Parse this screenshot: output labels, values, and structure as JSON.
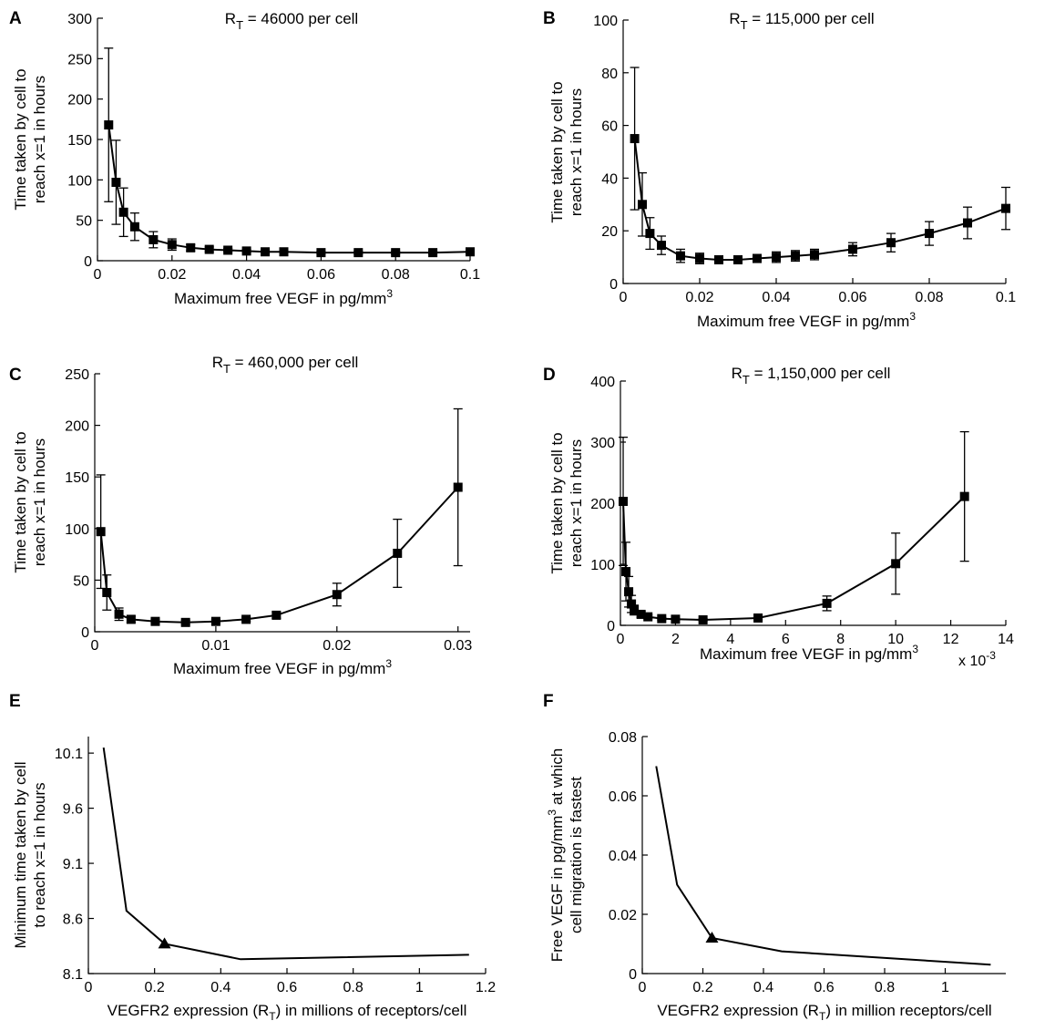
{
  "chart_data": [
    {
      "id": "A",
      "type": "line",
      "panel_label": "A",
      "title_main": "R",
      "title_sub": "T",
      "title_rest": " = 46000 per cell",
      "ylabel": [
        "Time taken by cell to",
        "reach x=1 in hours"
      ],
      "xlabel_main": "Maximum free VEGF in pg/mm",
      "xlabel_sup": "3",
      "xlim": [
        0,
        0.1
      ],
      "ylim": [
        0,
        300
      ],
      "xticks": [
        0,
        0.02,
        0.04,
        0.06,
        0.08,
        0.1
      ],
      "xtick_labels": [
        "0",
        "0.02",
        "0.04",
        "0.06",
        "0.08",
        "0.1"
      ],
      "yticks": [
        0,
        50,
        100,
        150,
        200,
        250,
        300
      ],
      "ytick_labels": [
        "0",
        "50",
        "100",
        "150",
        "200",
        "250",
        "300"
      ],
      "marker": "square",
      "x": [
        0.003,
        0.005,
        0.007,
        0.01,
        0.015,
        0.02,
        0.025,
        0.03,
        0.035,
        0.04,
        0.045,
        0.05,
        0.06,
        0.07,
        0.08,
        0.09,
        0.1
      ],
      "y": [
        168,
        97,
        60,
        42,
        26,
        20,
        16,
        14,
        13,
        12,
        11,
        11,
        10,
        10,
        10,
        10,
        11
      ],
      "err": [
        95,
        52,
        30,
        17,
        10,
        7,
        4,
        3,
        2,
        2,
        2,
        2,
        2,
        2,
        2,
        2,
        2
      ]
    },
    {
      "id": "B",
      "type": "line",
      "panel_label": "B",
      "title_main": "R",
      "title_sub": "T",
      "title_rest": " = 115,000 per cell",
      "ylabel": [
        "Time taken by cell to",
        "reach x=1 in hours"
      ],
      "xlabel_main": "Maximum free VEGF in pg/mm",
      "xlabel_sup": "3",
      "xlim": [
        0,
        0.1
      ],
      "ylim": [
        0,
        100
      ],
      "xticks": [
        0,
        0.02,
        0.04,
        0.06,
        0.08,
        0.1
      ],
      "xtick_labels": [
        "0",
        "0.02",
        "0.04",
        "0.06",
        "0.08",
        "0.1"
      ],
      "yticks": [
        0,
        20,
        40,
        60,
        80,
        100
      ],
      "ytick_labels": [
        "0",
        "20",
        "40",
        "60",
        "80",
        "100"
      ],
      "marker": "square",
      "x": [
        0.003,
        0.005,
        0.007,
        0.01,
        0.015,
        0.02,
        0.025,
        0.03,
        0.035,
        0.04,
        0.045,
        0.05,
        0.06,
        0.07,
        0.08,
        0.09,
        0.1
      ],
      "y": [
        55,
        30,
        19,
        14.5,
        10.5,
        9.5,
        9,
        9,
        9.5,
        10,
        10.5,
        11,
        13,
        15.5,
        19,
        23,
        28.5
      ],
      "err": [
        27,
        12,
        6,
        3.5,
        2.5,
        2,
        1.5,
        1.5,
        1.5,
        2,
        2,
        2,
        2.5,
        3.5,
        4.5,
        6,
        8
      ]
    },
    {
      "id": "C",
      "type": "line",
      "panel_label": "C",
      "title_main": "R",
      "title_sub": "T",
      "title_rest": " = 460,000 per cell",
      "ylabel": [
        "Time taken by cell to",
        "reach x=1 in hours"
      ],
      "xlabel_main": "Maximum free VEGF in pg/mm",
      "xlabel_sup": "3",
      "xlim": [
        0,
        0.031
      ],
      "ylim": [
        0,
        250
      ],
      "xticks": [
        0,
        0.01,
        0.02,
        0.03
      ],
      "xtick_labels": [
        "0",
        "0.01",
        "0.02",
        "0.03"
      ],
      "yticks": [
        0,
        50,
        100,
        150,
        200,
        250
      ],
      "ytick_labels": [
        "0",
        "50",
        "100",
        "150",
        "200",
        "250"
      ],
      "marker": "square",
      "x": [
        0.0005,
        0.001,
        0.002,
        0.003,
        0.005,
        0.0075,
        0.01,
        0.0125,
        0.015,
        0.02,
        0.025,
        0.03
      ],
      "y": [
        97,
        38,
        17,
        12,
        10,
        9,
        10,
        12,
        16,
        36,
        76,
        140
      ],
      "err": [
        55,
        17,
        6,
        3,
        2,
        2,
        2,
        2,
        3,
        11,
        33,
        76
      ]
    },
    {
      "id": "D",
      "type": "line",
      "panel_label": "D",
      "title_main": "R",
      "title_sub": "T",
      "title_rest": " = 1,150,000 per cell",
      "ylabel": [
        "Time taken by cell to",
        "reach x=1 in hours"
      ],
      "xlabel_main": "Maximum free VEGF in pg/mm",
      "xlabel_sup": "3",
      "exponent_label": "x 10",
      "exponent_sup": "-3",
      "xlim": [
        0,
        14
      ],
      "ylim": [
        0,
        400
      ],
      "xticks": [
        0,
        2,
        4,
        6,
        8,
        10,
        12,
        14
      ],
      "xtick_labels": [
        "0",
        "2",
        "4",
        "6",
        "8",
        "10",
        "12",
        "14"
      ],
      "yticks": [
        0,
        100,
        200,
        300,
        400
      ],
      "ytick_labels": [
        "0",
        "100",
        "200",
        "300",
        "400"
      ],
      "marker": "square",
      "x": [
        0.1,
        0.2,
        0.3,
        0.4,
        0.5,
        0.75,
        1,
        1.5,
        2,
        3,
        5,
        7.5,
        10,
        12.5
      ],
      "y": [
        203,
        88,
        55,
        35,
        25,
        18,
        14,
        11,
        10,
        9,
        12,
        36,
        101,
        211
      ],
      "err": [
        105,
        48,
        25,
        14,
        8,
        5,
        3,
        2,
        2,
        2,
        3,
        12,
        50,
        106
      ]
    },
    {
      "id": "E",
      "type": "line",
      "panel_label": "E",
      "ylabel": [
        "Minimum time taken by cell",
        "to reach x=1 in hours"
      ],
      "xlabel_main": "VEGFR2 expression (R",
      "xlabel_sub": "T",
      "xlabel_rest": ") in millions of receptors/cell",
      "xlim": [
        0,
        1.2
      ],
      "ylim": [
        8.1,
        10.25
      ],
      "xticks": [
        0,
        0.2,
        0.4,
        0.6,
        0.8,
        1,
        1.2
      ],
      "xtick_labels": [
        "0",
        "0.2",
        "0.4",
        "0.6",
        "0.8",
        "1",
        "1.2"
      ],
      "yticks": [
        8.1,
        8.6,
        9.1,
        9.6,
        10.1
      ],
      "ytick_labels": [
        "8.1",
        "8.6",
        "9.1",
        "9.6",
        "10.1"
      ],
      "x": [
        0.046,
        0.115,
        0.23,
        0.46,
        1.15
      ],
      "y": [
        10.15,
        8.67,
        8.37,
        8.23,
        8.27
      ],
      "highlight_index": 2,
      "highlight_marker": "triangle"
    },
    {
      "id": "F",
      "type": "line",
      "panel_label": "F",
      "ylabel_line1_main": "Free VEGF in pg/mm",
      "ylabel_line1_sup": "3",
      "ylabel_line1_rest": " at which",
      "ylabel_line2": "cell migration is fastest",
      "xlabel_main": "VEGFR2 expression (R",
      "xlabel_sub": "T",
      "xlabel_rest": ") in million receptors/cell",
      "xlim": [
        0,
        1.2
      ],
      "ylim": [
        0,
        0.08
      ],
      "xticks": [
        0,
        0.2,
        0.4,
        0.6,
        0.8,
        1
      ],
      "xtick_labels": [
        "0",
        "0.2",
        "0.4",
        "0.6",
        "0.8",
        "1"
      ],
      "yticks": [
        0,
        0.02,
        0.04,
        0.06,
        0.08
      ],
      "ytick_labels": [
        "0",
        "0.02",
        "0.04",
        "0.06",
        "0.08"
      ],
      "x": [
        0.046,
        0.115,
        0.23,
        0.46,
        1.15
      ],
      "y": [
        0.07,
        0.03,
        0.012,
        0.0075,
        0.003
      ],
      "highlight_index": 2,
      "highlight_marker": "triangle"
    }
  ]
}
